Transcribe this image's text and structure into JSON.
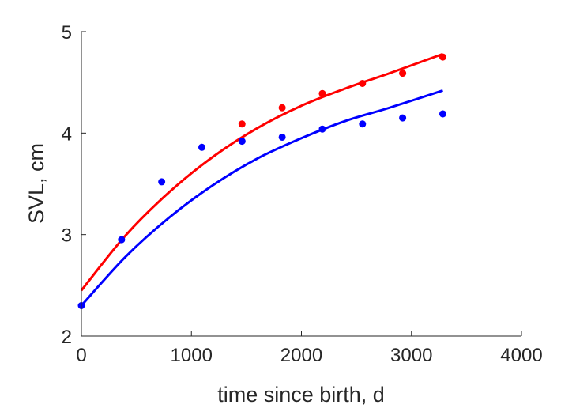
{
  "chart_data": {
    "type": "scatter",
    "title": "",
    "xlabel": "time since birth, d",
    "ylabel": "SVL, cm",
    "xlim": [
      0,
      4000
    ],
    "ylim": [
      2,
      5
    ],
    "x_ticks": [
      "0",
      "1000",
      "2000",
      "3000",
      "4000"
    ],
    "y_ticks": [
      "2",
      "3",
      "4",
      "5"
    ],
    "grid": false,
    "series": [
      {
        "color": "#ff0000",
        "points": [
          {
            "x": 1460,
            "y": 4.09
          },
          {
            "x": 1825,
            "y": 4.25
          },
          {
            "x": 2190,
            "y": 4.39
          },
          {
            "x": 2555,
            "y": 4.49
          },
          {
            "x": 2920,
            "y": 4.59
          },
          {
            "x": 3285,
            "y": 4.75
          }
        ],
        "fit": {
          "x": [
            0,
            400,
            800,
            1200,
            1600,
            2000,
            2400,
            2800,
            3285
          ],
          "y": [
            2.45,
            2.99,
            3.42,
            3.77,
            4.05,
            4.27,
            4.44,
            4.59,
            4.78
          ]
        }
      },
      {
        "color": "#0000ff",
        "points": [
          {
            "x": 0,
            "y": 2.3
          },
          {
            "x": 365,
            "y": 2.95
          },
          {
            "x": 730,
            "y": 3.52
          },
          {
            "x": 1095,
            "y": 3.86
          },
          {
            "x": 1460,
            "y": 3.92
          },
          {
            "x": 1825,
            "y": 3.96
          },
          {
            "x": 2190,
            "y": 4.04
          },
          {
            "x": 2555,
            "y": 4.09
          },
          {
            "x": 2920,
            "y": 4.15
          },
          {
            "x": 3285,
            "y": 4.19
          }
        ],
        "fit": {
          "x": [
            0,
            400,
            800,
            1200,
            1600,
            2000,
            2400,
            2800,
            3285
          ],
          "y": [
            2.3,
            2.78,
            3.17,
            3.49,
            3.75,
            3.95,
            4.12,
            4.25,
            4.42
          ]
        }
      }
    ]
  }
}
